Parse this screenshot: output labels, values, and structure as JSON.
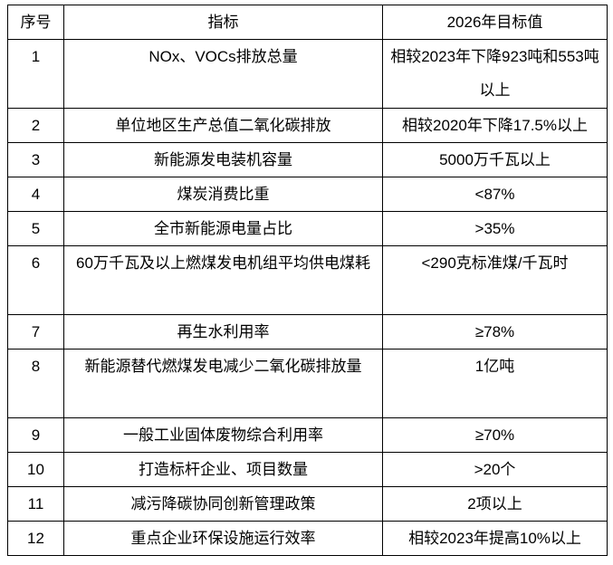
{
  "colors": {
    "background": "#ffffff",
    "border": "#000000",
    "text": "#000000"
  },
  "chart_data": {
    "type": "table",
    "title": "",
    "columns": [
      "序号",
      "指标",
      "2026年目标值"
    ],
    "rows": [
      [
        "1",
        "NOx、VOCs排放总量",
        "相较2023年下降923吨和553吨以上"
      ],
      [
        "2",
        "单位地区生产总值二氧化碳排放",
        "相较2020年下降17.5%以上"
      ],
      [
        "3",
        "新能源发电装机容量",
        "5000万千瓦以上"
      ],
      [
        "4",
        "煤炭消费比重",
        "<87%"
      ],
      [
        "5",
        "全市新能源电量占比",
        ">35%"
      ],
      [
        "6",
        "60万千瓦及以上燃煤发电机组平均供电煤耗",
        "<290克标准煤/千瓦时"
      ],
      [
        "7",
        "再生水利用率",
        "≥78%"
      ],
      [
        "8",
        "新能源替代燃煤发电减少二氧化碳排放量",
        "1亿吨"
      ],
      [
        "9",
        "一般工业固体废物综合利用率",
        "≥70%"
      ],
      [
        "10",
        "打造标杆企业、项目数量",
        ">20个"
      ],
      [
        "11",
        "减污降碳协同创新管理政策",
        "2项以上"
      ],
      [
        "12",
        "重点企业环保设施运行效率",
        "相较2023年提高10%以上"
      ]
    ]
  }
}
